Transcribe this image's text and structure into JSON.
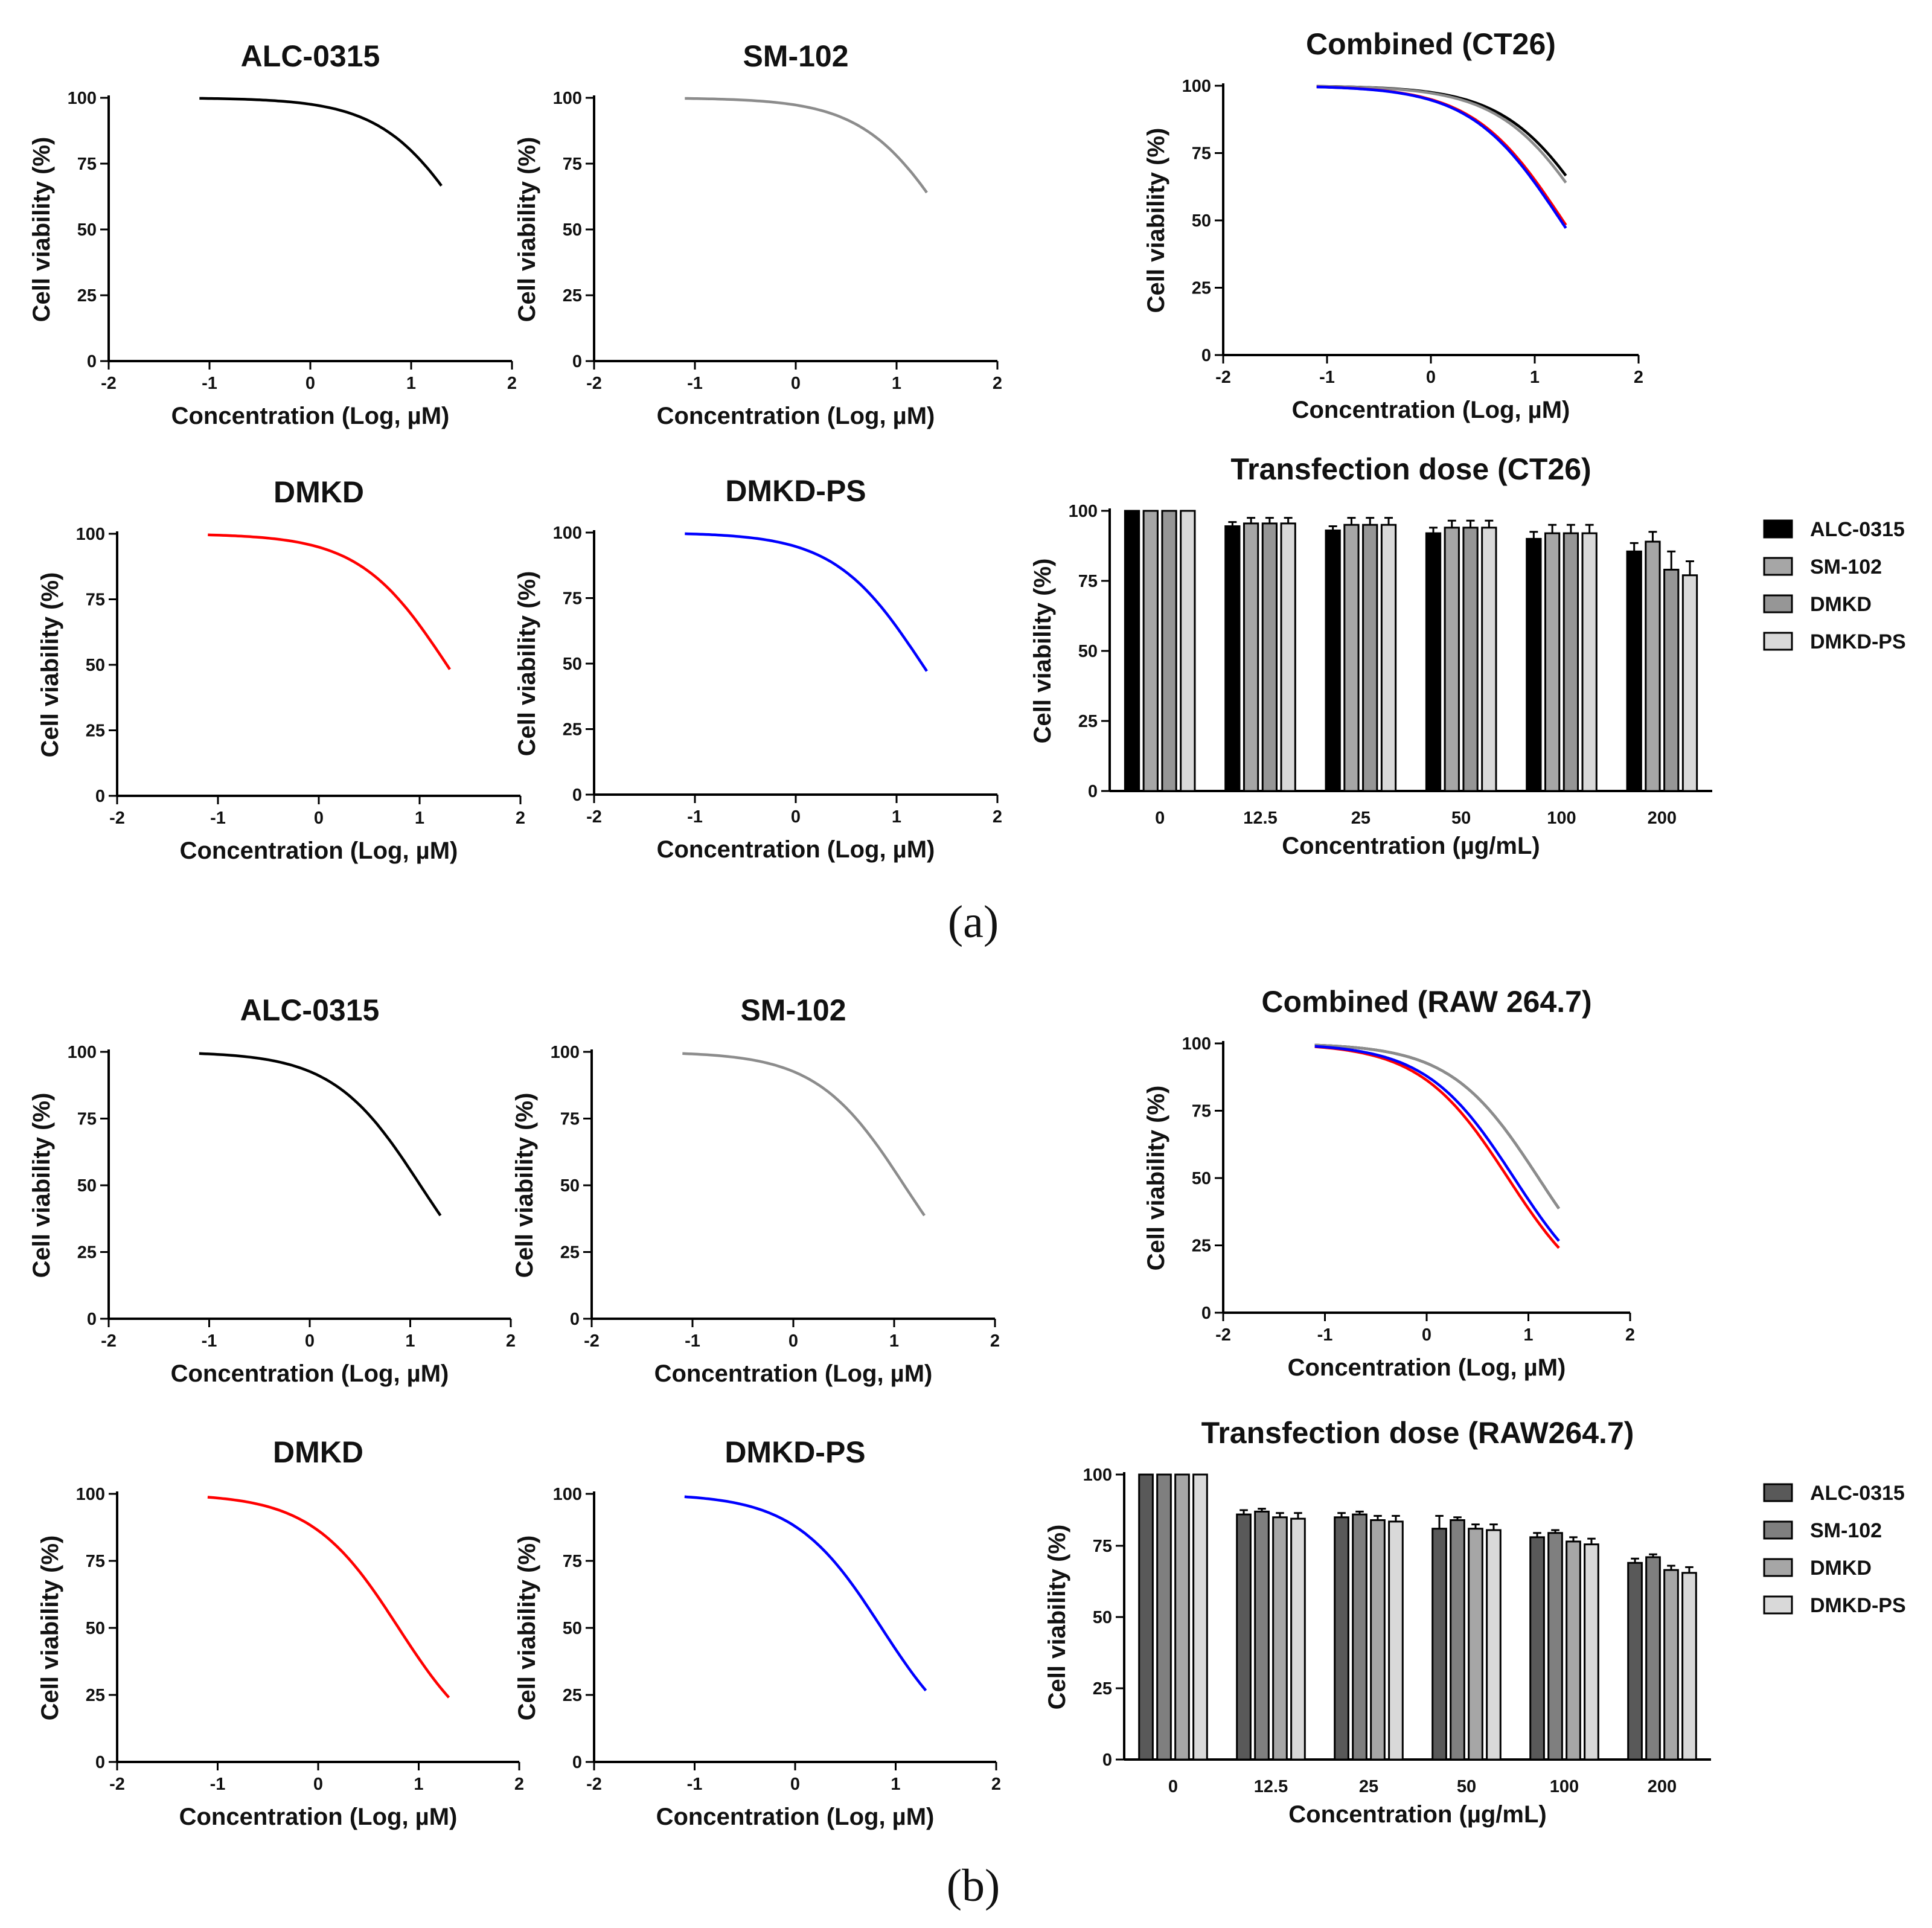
{
  "panel_labels": [
    "(a)",
    "(b)"
  ],
  "chart_data": [
    {
      "type": "line",
      "panel": "(a)",
      "title": "ALC-0315",
      "xlabel": "Concentration  (Log, µM)",
      "ylabel": "Cell viability (%)",
      "xlim": [
        -2,
        2
      ],
      "ylim": [
        0,
        100
      ],
      "xticks": [
        -2,
        -1,
        0,
        1,
        2
      ],
      "yticks": [
        0,
        25,
        50,
        75,
        100
      ],
      "series": [
        {
          "name": "ALC-0315",
          "color": "#000000",
          "logIC50": 1.6,
          "hill": 1.0,
          "x_range": [
            -1.1,
            1.3
          ]
        }
      ]
    },
    {
      "type": "line",
      "panel": "(a)",
      "title": "SM-102",
      "xlabel": "Concentration  (Log, µM)",
      "ylabel": "Cell viability (%)",
      "xlim": [
        -2,
        2
      ],
      "ylim": [
        0,
        100
      ],
      "xticks": [
        -2,
        -1,
        0,
        1,
        2
      ],
      "yticks": [
        0,
        25,
        50,
        75,
        100
      ],
      "series": [
        {
          "name": "SM-102",
          "color": "#8c8c8c",
          "logIC50": 1.55,
          "hill": 1.0,
          "x_range": [
            -1.1,
            1.3
          ]
        }
      ]
    },
    {
      "type": "line",
      "panel": "(a)",
      "title": "Combined (CT26)",
      "xlabel": "Concentration  (Log, µM)",
      "ylabel": "Cell viability (%)",
      "xlim": [
        -2,
        2
      ],
      "ylim": [
        0,
        100
      ],
      "xticks": [
        -2,
        -1,
        0,
        1,
        2
      ],
      "yticks": [
        0,
        25,
        50,
        75,
        100
      ],
      "series": [
        {
          "name": "ALC-0315",
          "color": "#000000",
          "logIC50": 1.6,
          "hill": 1.0,
          "x_range": [
            -1.1,
            1.3
          ]
        },
        {
          "name": "SM-102",
          "color": "#8c8c8c",
          "logIC50": 1.55,
          "hill": 1.0,
          "x_range": [
            -1.1,
            1.3
          ]
        },
        {
          "name": "DMKD",
          "color": "#ff0000",
          "logIC50": 1.27,
          "hill": 1.0,
          "x_range": [
            -1.1,
            1.3
          ]
        },
        {
          "name": "DMKD-PS",
          "color": "#0000ff",
          "logIC50": 1.25,
          "hill": 1.0,
          "x_range": [
            -1.1,
            1.3
          ]
        }
      ]
    },
    {
      "type": "line",
      "panel": "(a)",
      "title": "DMKD",
      "xlabel": "Concentration  (Log, µM)",
      "ylabel": "Cell viability (%)",
      "xlim": [
        -2,
        2
      ],
      "ylim": [
        0,
        100
      ],
      "xticks": [
        -2,
        -1,
        0,
        1,
        2
      ],
      "yticks": [
        0,
        25,
        50,
        75,
        100
      ],
      "series": [
        {
          "name": "DMKD",
          "color": "#ff0000",
          "logIC50": 1.27,
          "hill": 1.0,
          "x_range": [
            -1.1,
            1.3
          ]
        }
      ]
    },
    {
      "type": "line",
      "panel": "(a)",
      "title": "DMKD-PS",
      "xlabel": "Concentration  (Log, µM)",
      "ylabel": "Cell viability (%)",
      "xlim": [
        -2,
        2
      ],
      "ylim": [
        0,
        100
      ],
      "xticks": [
        -2,
        -1,
        0,
        1,
        2
      ],
      "yticks": [
        0,
        25,
        50,
        75,
        100
      ],
      "series": [
        {
          "name": "DMKD-PS",
          "color": "#0000ff",
          "logIC50": 1.25,
          "hill": 1.0,
          "x_range": [
            -1.1,
            1.3
          ]
        }
      ]
    },
    {
      "type": "bar",
      "panel": "(a)",
      "title": "Transfection dose (CT26)",
      "xlabel": "Concentration  (µg/mL)",
      "ylabel": "Cell viability (%)",
      "ylim": [
        0,
        100
      ],
      "yticks": [
        0,
        25,
        50,
        75,
        100
      ],
      "categories": [
        "0",
        "12.5",
        "25",
        "50",
        "100",
        "200"
      ],
      "legend": [
        "ALC-0315",
        "SM-102",
        "DMKD",
        "DMKD-PS"
      ],
      "series": [
        {
          "name": "ALC-0315",
          "color": "#000000",
          "values": [
            100,
            94.5,
            93,
            92,
            90,
            85.5
          ],
          "errors": [
            0,
            1.5,
            1.5,
            2,
            2.5,
            3
          ]
        },
        {
          "name": "SM-102",
          "color": "#a6a6a6",
          "values": [
            100,
            95.5,
            95,
            94,
            92,
            89
          ],
          "errors": [
            0,
            2,
            2.5,
            2.5,
            3,
            3.5
          ]
        },
        {
          "name": "DMKD",
          "color": "#969696",
          "values": [
            100,
            95.5,
            95,
            94,
            92,
            79
          ],
          "errors": [
            0,
            2,
            2.5,
            2.5,
            3,
            6.5
          ]
        },
        {
          "name": "DMKD-PS",
          "color": "#d9d9d9",
          "values": [
            100,
            95.5,
            95,
            94,
            92,
            77
          ],
          "errors": [
            0,
            2,
            2.5,
            2.5,
            3,
            5
          ]
        }
      ]
    },
    {
      "type": "line",
      "panel": "(b)",
      "title": "ALC-0315",
      "xlabel": "Concentration  (Log, µM)",
      "ylabel": "Cell viability (%)",
      "xlim": [
        -2,
        2
      ],
      "ylim": [
        0,
        100
      ],
      "xticks": [
        -2,
        -1,
        0,
        1,
        2
      ],
      "yticks": [
        0,
        25,
        50,
        75,
        100
      ],
      "series": [
        {
          "name": "ALC-0315",
          "color": "#000000",
          "logIC50": 1.1,
          "hill": 1.0,
          "x_range": [
            -1.1,
            1.3
          ]
        }
      ]
    },
    {
      "type": "line",
      "panel": "(b)",
      "title": "SM-102",
      "xlabel": "Concentration  (Log, µM)",
      "ylabel": "Cell viability (%)",
      "xlim": [
        -2,
        2
      ],
      "ylim": [
        0,
        100
      ],
      "xticks": [
        -2,
        -1,
        0,
        1,
        2
      ],
      "yticks": [
        0,
        25,
        50,
        75,
        100
      ],
      "series": [
        {
          "name": "SM-102",
          "color": "#8c8c8c",
          "logIC50": 1.1,
          "hill": 1.0,
          "x_range": [
            -1.1,
            1.3
          ]
        }
      ]
    },
    {
      "type": "line",
      "panel": "(b)",
      "title": "Combined (RAW 264.7)",
      "xlabel": "Concentration  (Log, µM)",
      "ylabel": "Cell viability (%)",
      "xlim": [
        -2,
        2
      ],
      "ylim": [
        0,
        100
      ],
      "xticks": [
        -2,
        -1,
        0,
        1,
        2
      ],
      "yticks": [
        0,
        25,
        50,
        75,
        100
      ],
      "series": [
        {
          "name": "ALC-0315",
          "color": "#000000",
          "logIC50": 1.1,
          "hill": 1.0,
          "x_range": [
            -1.1,
            1.3
          ]
        },
        {
          "name": "SM-102",
          "color": "#8c8c8c",
          "logIC50": 1.1,
          "hill": 1.0,
          "x_range": [
            -1.1,
            1.3
          ]
        },
        {
          "name": "DMKD",
          "color": "#ff0000",
          "logIC50": 0.8,
          "hill": 1.0,
          "x_range": [
            -1.1,
            1.3
          ]
        },
        {
          "name": "DMKD-PS",
          "color": "#0000ff",
          "logIC50": 0.86,
          "hill": 1.0,
          "x_range": [
            -1.1,
            1.3
          ]
        }
      ]
    },
    {
      "type": "line",
      "panel": "(b)",
      "title": "DMKD",
      "xlabel": "Concentration  (Log, µM)",
      "ylabel": "Cell viability (%)",
      "xlim": [
        -2,
        2
      ],
      "ylim": [
        0,
        100
      ],
      "xticks": [
        -2,
        -1,
        0,
        1,
        2
      ],
      "yticks": [
        0,
        25,
        50,
        75,
        100
      ],
      "series": [
        {
          "name": "DMKD",
          "color": "#ff0000",
          "logIC50": 0.8,
          "hill": 1.0,
          "x_range": [
            -1.1,
            1.3
          ]
        }
      ]
    },
    {
      "type": "line",
      "panel": "(b)",
      "title": "DMKD-PS",
      "xlabel": "Concentration  (Log, µM)",
      "ylabel": "Cell viability (%)",
      "xlim": [
        -2,
        2
      ],
      "ylim": [
        0,
        100
      ],
      "xticks": [
        -2,
        -1,
        0,
        1,
        2
      ],
      "yticks": [
        0,
        25,
        50,
        75,
        100
      ],
      "series": [
        {
          "name": "DMKD-PS",
          "color": "#0000ff",
          "logIC50": 0.86,
          "hill": 1.0,
          "x_range": [
            -1.1,
            1.3
          ]
        }
      ]
    },
    {
      "type": "bar",
      "panel": "(b)",
      "title": "Transfection dose (RAW264.7)",
      "xlabel": "Concentration  (µg/mL)",
      "ylabel": "Cell viability (%)",
      "ylim": [
        0,
        100
      ],
      "yticks": [
        0,
        25,
        50,
        75,
        100
      ],
      "categories": [
        "0",
        "12.5",
        "25",
        "50",
        "100",
        "200"
      ],
      "legend": [
        "ALC-0315",
        "SM-102",
        "DMKD",
        "DMKD-PS"
      ],
      "series": [
        {
          "name": "ALC-0315",
          "color": "#595959",
          "values": [
            100,
            86,
            85,
            81,
            78,
            69
          ],
          "errors": [
            0,
            1.5,
            1.5,
            4.5,
            1.5,
            1.5
          ]
        },
        {
          "name": "SM-102",
          "color": "#7f7f7f",
          "values": [
            100,
            87,
            86,
            84,
            79.5,
            71
          ],
          "errors": [
            0,
            1,
            1,
            1,
            1,
            1
          ]
        },
        {
          "name": "DMKD",
          "color": "#a6a6a6",
          "values": [
            100,
            85,
            84,
            81,
            76.5,
            66.5
          ],
          "errors": [
            0,
            1.5,
            1.5,
            1.5,
            1.5,
            1.5
          ]
        },
        {
          "name": "DMKD-PS",
          "color": "#d9d9d9",
          "values": [
            100,
            84.5,
            83.5,
            80.5,
            75.5,
            65.5
          ],
          "errors": [
            0,
            2,
            2,
            2,
            2,
            2
          ]
        }
      ]
    }
  ]
}
